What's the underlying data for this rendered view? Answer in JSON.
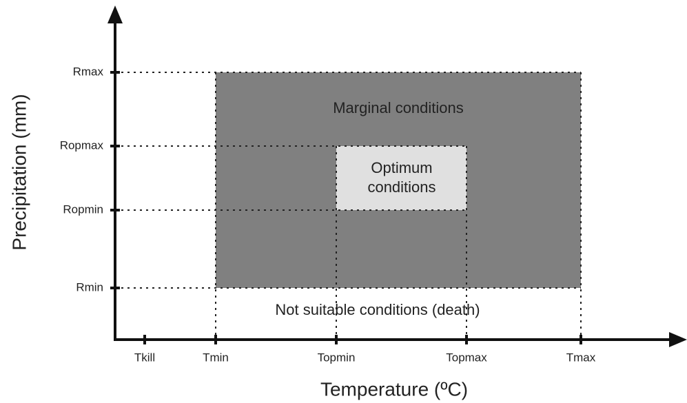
{
  "axes": {
    "x_title": "Temperature (ºC)",
    "y_title": "Precipitation (mm)"
  },
  "x_ticks": [
    "Tkill",
    "Tmin",
    "Topmin",
    "Topmax",
    "Tmax"
  ],
  "y_ticks": [
    "Rmax",
    "Ropmax",
    "Ropmin",
    "Rmin"
  ],
  "regions": {
    "marginal": "Marginal conditions",
    "optimum": [
      "Optimum",
      "conditions"
    ],
    "unsuitable": "Not suitable conditions (death)"
  }
}
